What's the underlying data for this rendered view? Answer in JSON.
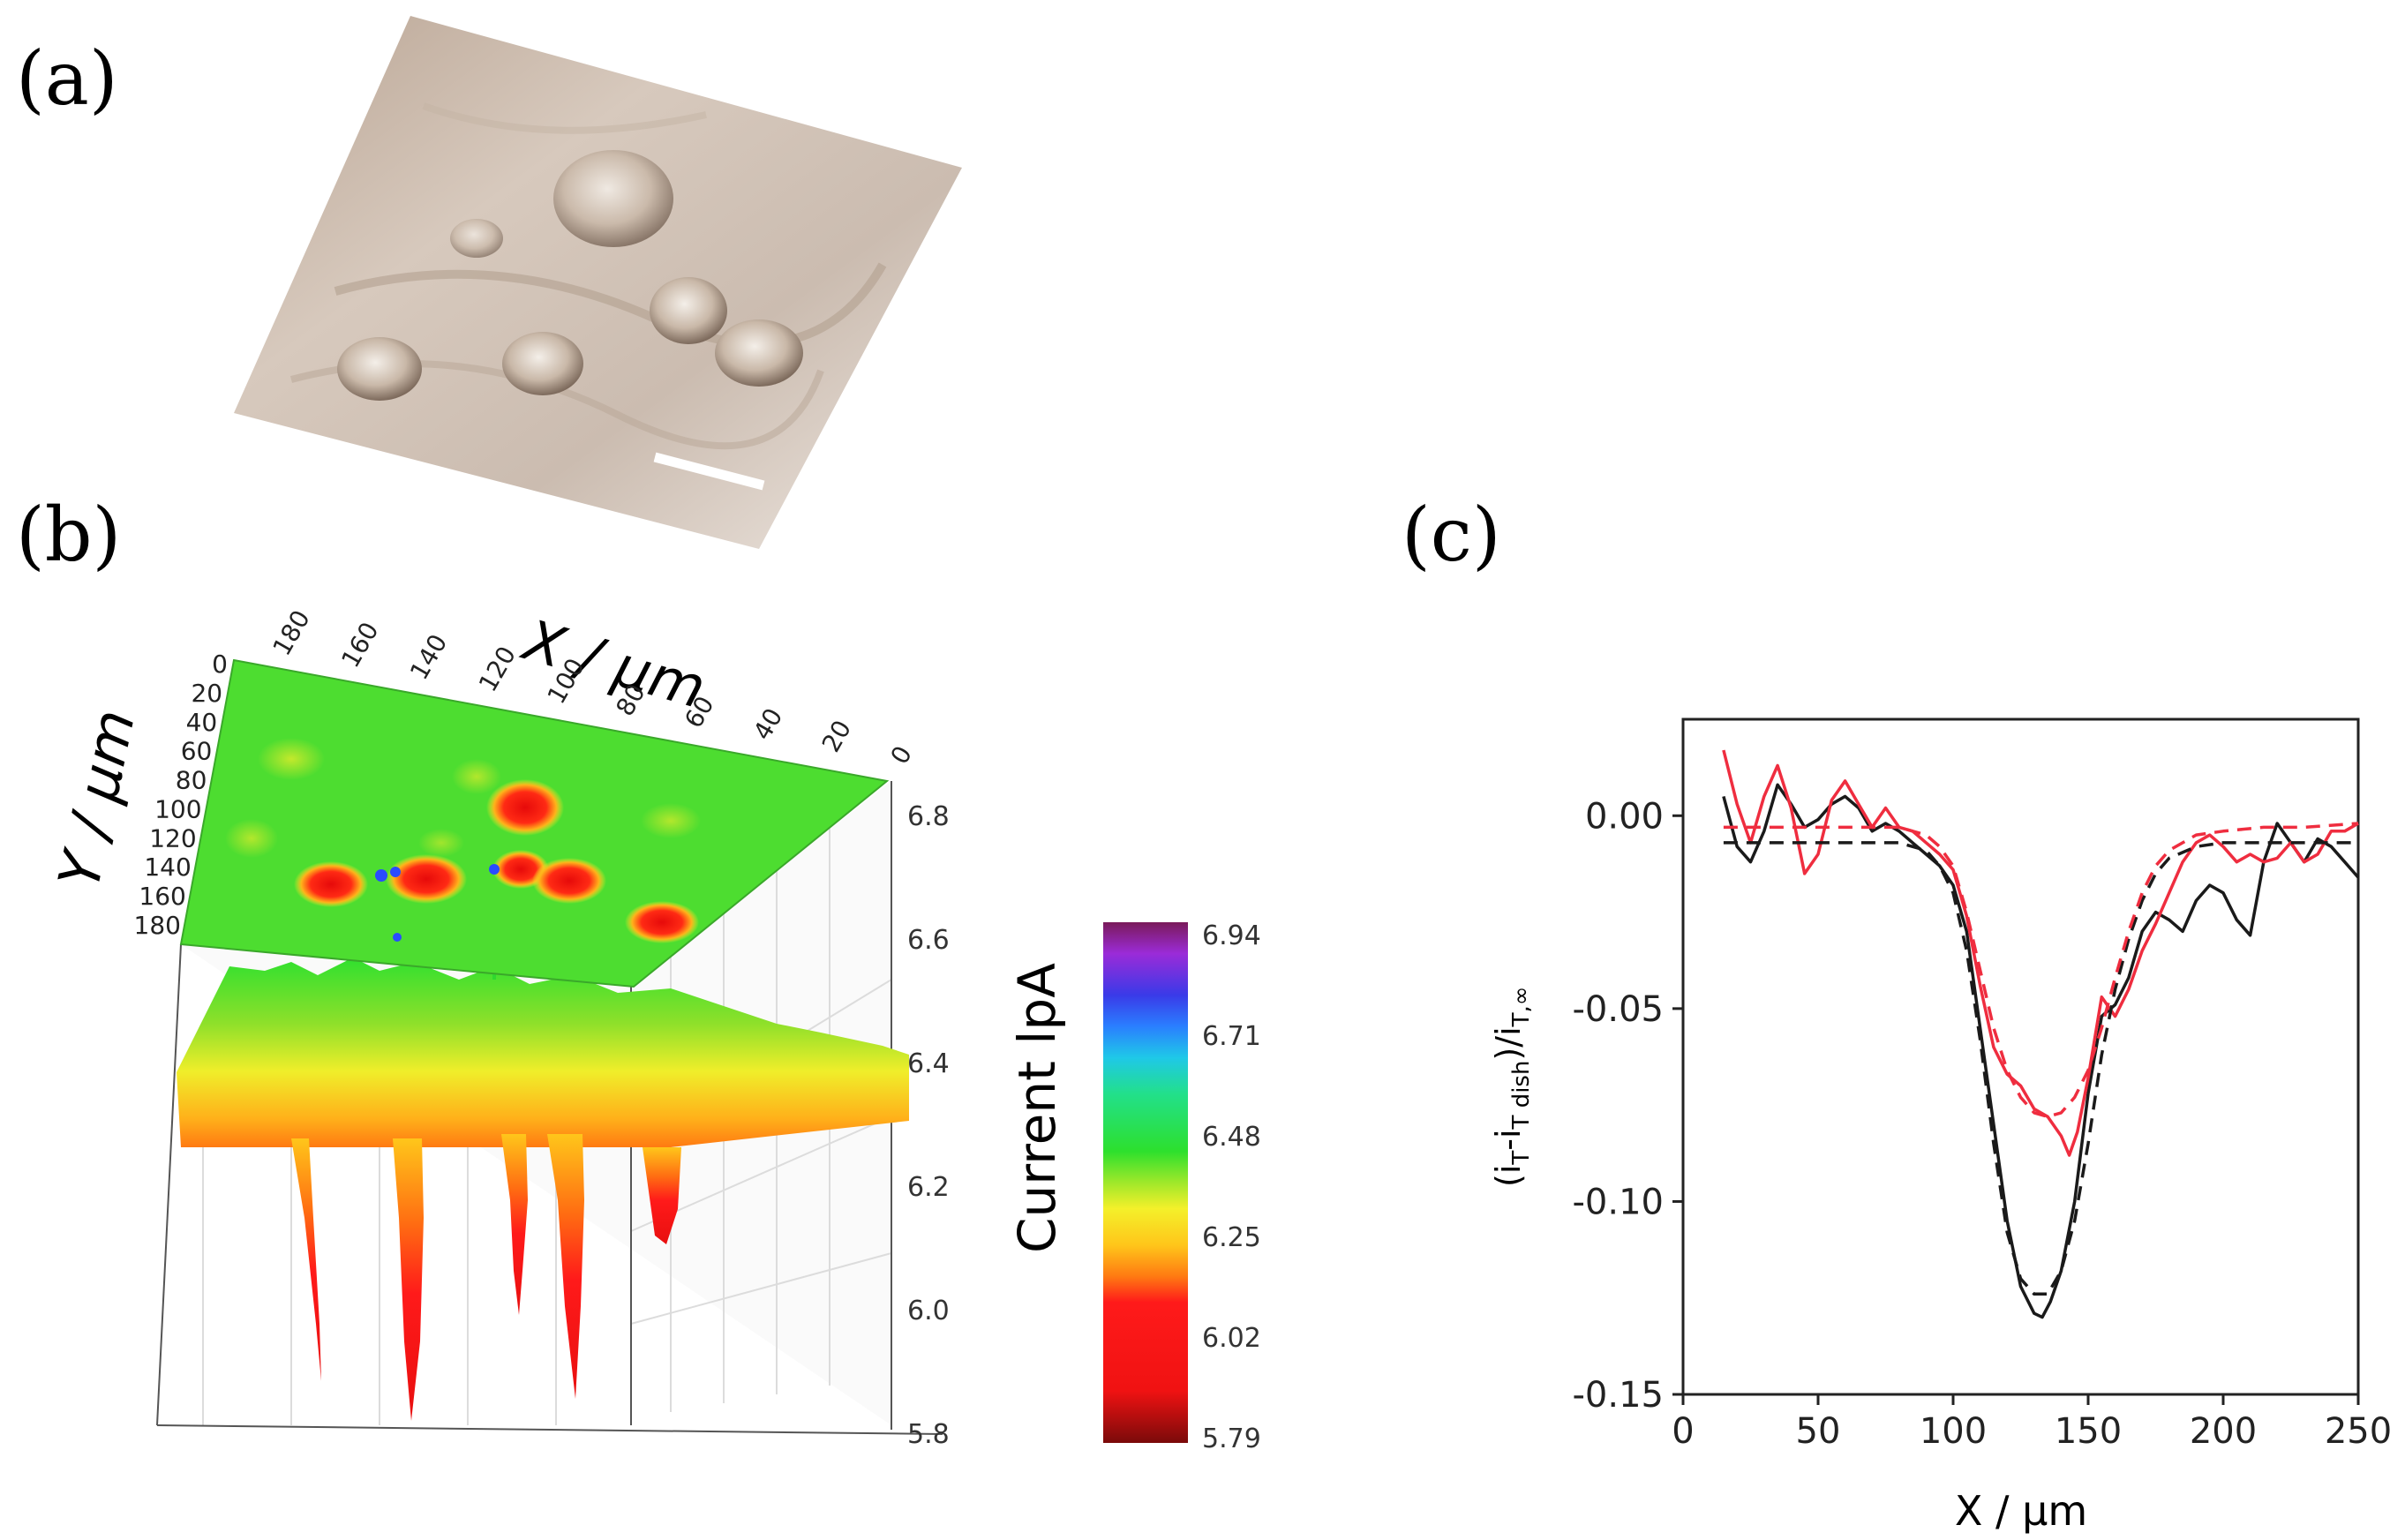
{
  "panels": {
    "a": {
      "label": "(a)"
    },
    "b": {
      "label": "(b)"
    },
    "c": {
      "label": "(c)"
    }
  },
  "chart_data": [
    {
      "panel": "b",
      "type": "heatmap",
      "subtype": "3d-surface",
      "x_axis": {
        "label": "X / μm",
        "ticks": [
          "180",
          "160",
          "140",
          "120",
          "100",
          "80",
          "60",
          "40",
          "20",
          "0"
        ]
      },
      "y_axis": {
        "label": "Y / μm",
        "ticks": [
          "0",
          "20",
          "40",
          "60",
          "80",
          "100",
          "120",
          "140",
          "160",
          "180"
        ]
      },
      "z_axis": {
        "label": "Current lpA",
        "ticks": [
          "6.8",
          "6.6",
          "6.4",
          "6.2",
          "6.0",
          "5.8"
        ],
        "range": [
          5.8,
          6.8
        ]
      },
      "colorbar": {
        "ticks": [
          "6.94",
          "6.71",
          "6.48",
          "6.25",
          "6.02",
          "5.79"
        ],
        "range": [
          5.79,
          6.94
        ]
      }
    },
    {
      "panel": "c",
      "type": "line",
      "xlabel": "X / μm",
      "ylabel_parts": {
        "open": "(i",
        "sub1": "T",
        "mid": "-i",
        "sub2": "T dish",
        "close": ")/i",
        "sub3": "T,∞"
      },
      "xlim": [
        0,
        250
      ],
      "ylim": [
        -0.15,
        0.025
      ],
      "x_ticks": [
        "0",
        "50",
        "100",
        "150",
        "200",
        "250"
      ],
      "y_ticks": [
        "0.00",
        "-0.05",
        "-0.10",
        "-0.15"
      ],
      "x_tick_values": [
        0,
        50,
        100,
        150,
        200,
        250
      ],
      "y_tick_values": [
        0.0,
        -0.05,
        -0.1,
        -0.15
      ],
      "series": [
        {
          "name": "black experimental",
          "color": "#1a1a1a",
          "dash": "solid",
          "x": [
            15,
            20,
            25,
            30,
            35,
            40,
            45,
            50,
            55,
            60,
            65,
            70,
            75,
            80,
            85,
            90,
            95,
            100,
            105,
            110,
            115,
            120,
            125,
            130,
            133,
            136,
            140,
            145,
            150,
            155,
            160,
            165,
            170,
            175,
            180,
            185,
            190,
            195,
            200,
            205,
            210,
            215,
            220,
            225,
            230,
            235,
            240,
            245,
            250
          ],
          "y": [
            0.005,
            -0.008,
            -0.012,
            -0.004,
            0.008,
            0.003,
            -0.003,
            -0.001,
            0.003,
            0.005,
            0.002,
            -0.004,
            -0.002,
            -0.004,
            -0.007,
            -0.01,
            -0.013,
            -0.018,
            -0.03,
            -0.055,
            -0.08,
            -0.105,
            -0.122,
            -0.129,
            -0.13,
            -0.126,
            -0.118,
            -0.1,
            -0.072,
            -0.052,
            -0.049,
            -0.042,
            -0.03,
            -0.025,
            -0.027,
            -0.03,
            -0.022,
            -0.018,
            -0.02,
            -0.027,
            -0.031,
            -0.012,
            -0.002,
            -0.007,
            -0.012,
            -0.006,
            -0.008,
            -0.012,
            -0.016
          ]
        },
        {
          "name": "red experimental",
          "color": "#ef2d3f",
          "dash": "solid",
          "x": [
            15,
            20,
            25,
            30,
            35,
            40,
            45,
            50,
            55,
            60,
            65,
            70,
            75,
            80,
            85,
            90,
            95,
            100,
            105,
            110,
            115,
            120,
            125,
            130,
            135,
            140,
            143,
            146,
            150,
            155,
            160,
            165,
            170,
            175,
            180,
            185,
            190,
            195,
            200,
            205,
            210,
            215,
            220,
            225,
            230,
            235,
            240,
            245,
            250
          ],
          "y": [
            0.017,
            0.003,
            -0.007,
            0.005,
            0.013,
            0.002,
            -0.015,
            -0.01,
            0.004,
            0.009,
            0.003,
            -0.003,
            0.002,
            -0.003,
            -0.004,
            -0.007,
            -0.01,
            -0.014,
            -0.026,
            -0.044,
            -0.06,
            -0.067,
            -0.07,
            -0.076,
            -0.078,
            -0.083,
            -0.088,
            -0.082,
            -0.068,
            -0.047,
            -0.052,
            -0.045,
            -0.035,
            -0.028,
            -0.02,
            -0.012,
            -0.007,
            -0.005,
            -0.008,
            -0.012,
            -0.01,
            -0.012,
            -0.011,
            -0.007,
            -0.012,
            -0.01,
            -0.004,
            -0.004,
            -0.002
          ]
        },
        {
          "name": "black fit",
          "color": "#1a1a1a",
          "dash": "dashed",
          "x": [
            15,
            40,
            60,
            80,
            90,
            95,
            100,
            105,
            110,
            115,
            120,
            125,
            130,
            135,
            140,
            145,
            150,
            155,
            160,
            165,
            170,
            175,
            180,
            190,
            200,
            215,
            230,
            250
          ],
          "y": [
            -0.007,
            -0.007,
            -0.007,
            -0.007,
            -0.009,
            -0.013,
            -0.02,
            -0.035,
            -0.058,
            -0.085,
            -0.108,
            -0.12,
            -0.124,
            -0.124,
            -0.118,
            -0.105,
            -0.085,
            -0.062,
            -0.045,
            -0.032,
            -0.022,
            -0.015,
            -0.011,
            -0.008,
            -0.007,
            -0.007,
            -0.007,
            -0.007
          ]
        },
        {
          "name": "red fit",
          "color": "#ef2d3f",
          "dash": "dashed",
          "x": [
            15,
            40,
            60,
            80,
            90,
            95,
            100,
            105,
            110,
            115,
            120,
            125,
            130,
            135,
            140,
            145,
            150,
            155,
            160,
            165,
            170,
            175,
            180,
            190,
            200,
            215,
            230,
            250
          ],
          "y": [
            -0.003,
            -0.003,
            -0.003,
            -0.003,
            -0.005,
            -0.008,
            -0.013,
            -0.025,
            -0.04,
            -0.055,
            -0.066,
            -0.073,
            -0.077,
            -0.078,
            -0.077,
            -0.073,
            -0.066,
            -0.055,
            -0.042,
            -0.03,
            -0.02,
            -0.013,
            -0.009,
            -0.005,
            -0.004,
            -0.003,
            -0.003,
            -0.002
          ]
        }
      ]
    }
  ]
}
